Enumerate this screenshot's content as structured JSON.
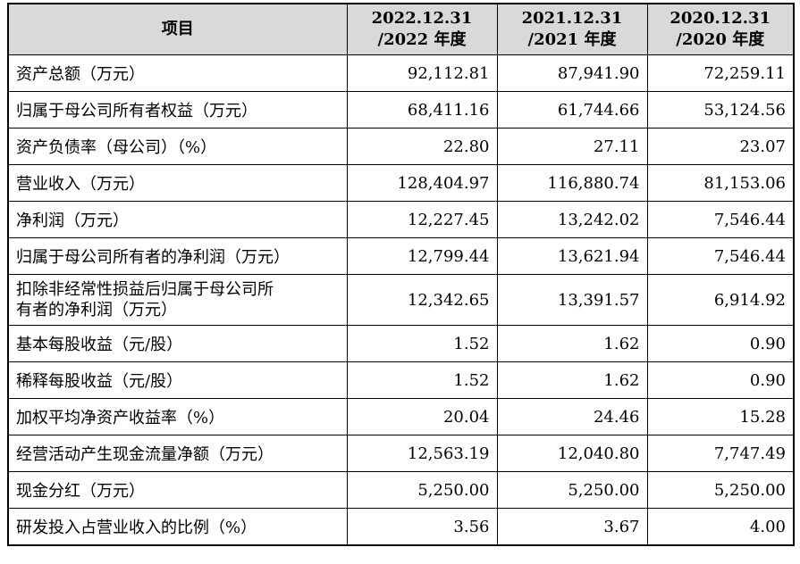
{
  "table": {
    "headers": {
      "item": "项目",
      "c2022_line1": "2022.12.31",
      "c2022_line2": "/2022 年度",
      "c2021_line1": "2021.12.31",
      "c2021_line2": "/2021 年度",
      "c2020_line1": "2020.12.31",
      "c2020_line2": "/2020 年度"
    },
    "rows": [
      {
        "label": "资产总额（万元）",
        "v2022": "92,112.81",
        "v2021": "87,941.90",
        "v2020": "72,259.11"
      },
      {
        "label": "归属于母公司所有者权益（万元）",
        "v2022": "68,411.16",
        "v2021": "61,744.66",
        "v2020": "53,124.56"
      },
      {
        "label": "资产负债率（母公司）（%）",
        "v2022": "22.80",
        "v2021": "27.11",
        "v2020": "23.07"
      },
      {
        "label": "营业收入（万元）",
        "v2022": "128,404.97",
        "v2021": "116,880.74",
        "v2020": "81,153.06"
      },
      {
        "label": "净利润（万元）",
        "v2022": "12,227.45",
        "v2021": "13,242.02",
        "v2020": "7,546.44"
      },
      {
        "label": "归属于母公司所有者的净利润（万元）",
        "v2022": "12,799.44",
        "v2021": "13,621.94",
        "v2020": "7,546.44"
      },
      {
        "label_line1": "扣除非经常性损益后归属于母公司所",
        "label_line2": "有者的净利润（万元）",
        "v2022": "12,342.65",
        "v2021": "13,391.57",
        "v2020": "6,914.92"
      },
      {
        "label": "基本每股收益（元/股）",
        "v2022": "1.52",
        "v2021": "1.62",
        "v2020": "0.90"
      },
      {
        "label": "稀释每股收益（元/股）",
        "v2022": "1.52",
        "v2021": "1.62",
        "v2020": "0.90"
      },
      {
        "label": "加权平均净资产收益率（%）",
        "v2022": "20.04",
        "v2021": "24.46",
        "v2020": "15.28"
      },
      {
        "label": "经营活动产生现金流量净额（万元）",
        "v2022": "12,563.19",
        "v2021": "12,040.80",
        "v2020": "7,747.49"
      },
      {
        "label": "现金分红（万元）",
        "v2022": "5,250.00",
        "v2021": "5,250.00",
        "v2020": "5,250.00"
      },
      {
        "label": "研发投入占营业收入的比例（%）",
        "v2022": "3.56",
        "v2021": "3.67",
        "v2020": "4.00"
      }
    ]
  }
}
